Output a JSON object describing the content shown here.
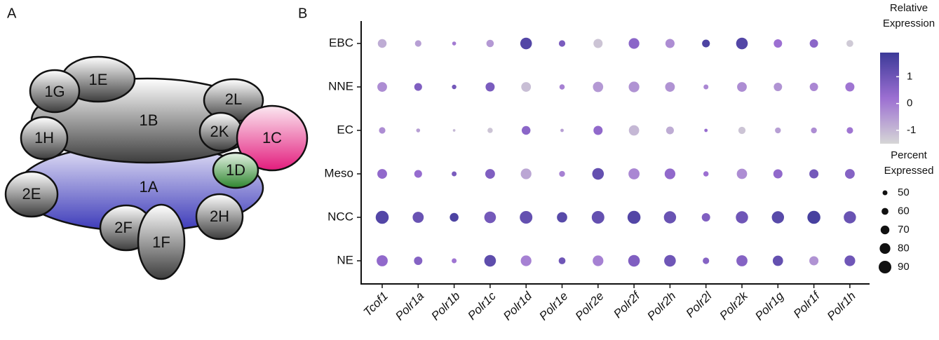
{
  "diagram": {
    "panel_label": "A",
    "nodes": [
      {
        "label": "1A"
      },
      {
        "label": "1B"
      },
      {
        "label": "1E"
      },
      {
        "label": "1G"
      },
      {
        "label": "2L"
      },
      {
        "label": "2K"
      },
      {
        "label": "1C"
      },
      {
        "label": "1D"
      },
      {
        "label": "1H"
      },
      {
        "label": "2E"
      },
      {
        "label": "2F"
      },
      {
        "label": "1F"
      },
      {
        "label": "2H"
      }
    ]
  },
  "chart_data": {
    "type": "dot",
    "panel_label": "B",
    "categories": [
      "Tcof1",
      "Polr1a",
      "Polr1b",
      "Polr1c",
      "Polr1d",
      "Polr1e",
      "Polr2e",
      "Polr2f",
      "Polr2h",
      "Polr2l",
      "Polr2k",
      "Polr1g",
      "Polr1f",
      "Polr1h"
    ],
    "series": [
      {
        "name": "EBC",
        "values": [
          -0.8,
          -0.6,
          0,
          -0.5,
          1.5,
          0.8,
          -1.2,
          0.5,
          -0.3,
          1.6,
          1.5,
          0.2,
          0.5,
          -1.3
        ],
        "sizes": [
          70,
          58,
          45,
          63,
          85,
          58,
          72,
          80,
          72,
          65,
          85,
          68,
          68,
          60
        ]
      },
      {
        "name": "NNE",
        "values": [
          -0.3,
          0.7,
          0.9,
          0.8,
          -1.1,
          -0.1,
          -0.5,
          -0.4,
          -0.4,
          -0.2,
          -0.3,
          -0.4,
          -0.2,
          0.1
        ],
        "sizes": [
          75,
          65,
          48,
          72,
          75,
          52,
          78,
          80,
          75,
          50,
          75,
          68,
          68,
          72
        ]
      },
      {
        "name": "EC",
        "values": [
          -0.3,
          -0.6,
          -1,
          -1.2,
          0.5,
          -0.6,
          0.4,
          -1,
          -0.8,
          0.3,
          -1.2,
          -0.6,
          -0.3,
          0.1
        ],
        "sizes": [
          58,
          45,
          38,
          52,
          70,
          42,
          72,
          78,
          65,
          42,
          62,
          55,
          55,
          58
        ]
      },
      {
        "name": "Meso",
        "values": [
          0.4,
          0.3,
          0.8,
          0.7,
          -0.7,
          -0.1,
          1.2,
          -0.2,
          0.4,
          0.2,
          -0.3,
          0.4,
          0.9,
          0.6
        ],
        "sizes": [
          75,
          65,
          50,
          75,
          80,
          55,
          85,
          82,
          80,
          52,
          78,
          72,
          72,
          75
        ]
      },
      {
        "name": "NCC",
        "values": [
          1.5,
          1.1,
          1.6,
          0.9,
          1.2,
          1.4,
          1.2,
          1.5,
          1.1,
          0.7,
          1.0,
          1.4,
          1.7,
          1.1
        ],
        "sizes": [
          92,
          82,
          70,
          85,
          90,
          78,
          90,
          92,
          88,
          68,
          88,
          88,
          92,
          88
        ]
      },
      {
        "name": "NE",
        "values": [
          0.4,
          0.6,
          0.1,
          1.3,
          -0.1,
          1.0,
          -0.1,
          0.7,
          1.0,
          0.6,
          0.6,
          1.2,
          -0.4,
          1.0
        ],
        "sizes": [
          82,
          68,
          50,
          85,
          80,
          60,
          80,
          85,
          85,
          58,
          82,
          78,
          72,
          80
        ]
      }
    ],
    "color_title": [
      "Relative",
      "Expression"
    ],
    "colorlim": [
      -1.5,
      1.9
    ],
    "colorticks": [
      1,
      0,
      -1
    ],
    "colors": [
      "#d6d6d6",
      "#9c6fd2",
      "#3c3a98"
    ],
    "size_title": [
      "Percent",
      "Expressed"
    ],
    "sizeticks": [
      50,
      60,
      70,
      80,
      90
    ]
  }
}
